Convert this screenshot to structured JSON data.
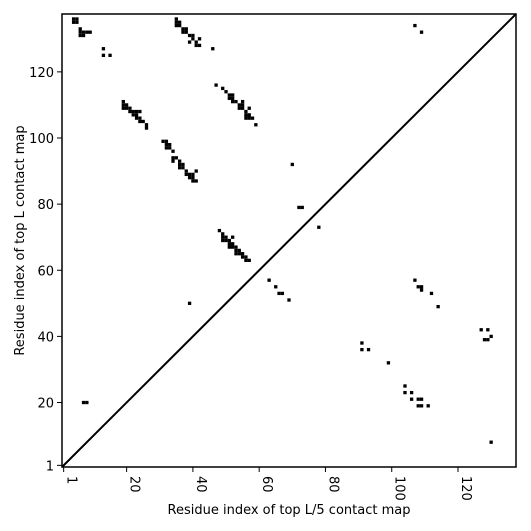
{
  "chart_data": {
    "type": "scatter",
    "xlabel": "Residue index of top L/5 contact map",
    "ylabel": "Residue index of top L contact map",
    "xlim": [
      1,
      137
    ],
    "ylim": [
      1,
      137
    ],
    "xticks": [
      1,
      20,
      40,
      60,
      80,
      100,
      120
    ],
    "yticks": [
      1,
      20,
      40,
      60,
      80,
      100,
      120
    ],
    "diagonal_line": true,
    "marker": "square",
    "marker_color": "#000000",
    "points": [
      [
        4,
        136
      ],
      [
        5,
        136
      ],
      [
        4,
        135
      ],
      [
        5,
        135
      ],
      [
        6,
        133
      ],
      [
        6,
        132
      ],
      [
        7,
        132
      ],
      [
        8,
        132
      ],
      [
        6,
        131
      ],
      [
        7,
        131
      ],
      [
        9,
        132
      ],
      [
        13,
        127
      ],
      [
        13,
        125
      ],
      [
        15,
        125
      ],
      [
        19,
        111
      ],
      [
        19,
        110
      ],
      [
        20,
        110
      ],
      [
        19,
        109
      ],
      [
        20,
        109
      ],
      [
        21,
        109
      ],
      [
        21,
        108
      ],
      [
        22,
        108
      ],
      [
        23,
        108
      ],
      [
        24,
        108
      ],
      [
        22,
        107
      ],
      [
        23,
        107
      ],
      [
        23,
        106
      ],
      [
        24,
        106
      ],
      [
        24,
        105
      ],
      [
        25,
        105
      ],
      [
        26,
        104
      ],
      [
        26,
        103
      ],
      [
        35,
        136
      ],
      [
        35,
        135
      ],
      [
        36,
        135
      ],
      [
        35,
        134
      ],
      [
        36,
        134
      ],
      [
        37,
        133
      ],
      [
        38,
        133
      ],
      [
        37,
        132
      ],
      [
        38,
        132
      ],
      [
        39,
        131
      ],
      [
        40,
        131
      ],
      [
        40,
        130
      ],
      [
        42,
        130
      ],
      [
        39,
        129
      ],
      [
        41,
        129
      ],
      [
        41,
        128
      ],
      [
        42,
        128
      ],
      [
        46,
        127
      ],
      [
        47,
        116
      ],
      [
        49,
        115
      ],
      [
        50,
        114
      ],
      [
        51,
        113
      ],
      [
        52,
        113
      ],
      [
        51,
        112
      ],
      [
        52,
        112
      ],
      [
        52,
        111
      ],
      [
        53,
        111
      ],
      [
        55,
        111
      ],
      [
        54,
        110
      ],
      [
        55,
        110
      ],
      [
        54,
        109
      ],
      [
        55,
        109
      ],
      [
        57,
        109
      ],
      [
        56,
        108
      ],
      [
        56,
        107
      ],
      [
        57,
        107
      ],
      [
        56,
        106
      ],
      [
        57,
        106
      ],
      [
        58,
        106
      ],
      [
        59,
        104
      ],
      [
        31,
        99
      ],
      [
        32,
        99
      ],
      [
        32,
        98
      ],
      [
        33,
        98
      ],
      [
        32,
        97
      ],
      [
        33,
        97
      ],
      [
        34,
        96
      ],
      [
        34,
        94
      ],
      [
        35,
        94
      ],
      [
        34,
        93
      ],
      [
        36,
        93
      ],
      [
        36,
        92
      ],
      [
        37,
        92
      ],
      [
        36,
        91
      ],
      [
        37,
        91
      ],
      [
        38,
        90
      ],
      [
        38,
        89
      ],
      [
        39,
        89
      ],
      [
        40,
        89
      ],
      [
        41,
        90
      ],
      [
        39,
        88
      ],
      [
        40,
        88
      ],
      [
        40,
        87
      ],
      [
        41,
        87
      ],
      [
        70,
        92
      ],
      [
        72,
        79
      ],
      [
        73,
        79
      ],
      [
        78,
        73
      ],
      [
        48,
        72
      ],
      [
        49,
        71
      ],
      [
        49,
        70
      ],
      [
        50,
        70
      ],
      [
        52,
        70
      ],
      [
        49,
        69
      ],
      [
        50,
        69
      ],
      [
        51,
        69
      ],
      [
        51,
        68
      ],
      [
        52,
        68
      ],
      [
        51,
        67
      ],
      [
        52,
        67
      ],
      [
        53,
        67
      ],
      [
        53,
        66
      ],
      [
        54,
        66
      ],
      [
        53,
        65
      ],
      [
        54,
        65
      ],
      [
        55,
        65
      ],
      [
        55,
        64
      ],
      [
        56,
        64
      ],
      [
        56,
        63
      ],
      [
        57,
        63
      ],
      [
        63,
        57
      ],
      [
        65,
        55
      ],
      [
        66,
        53
      ],
      [
        67,
        53
      ],
      [
        69,
        51
      ],
      [
        39,
        50
      ],
      [
        107,
        57
      ],
      [
        108,
        55
      ],
      [
        109,
        55
      ],
      [
        109,
        54
      ],
      [
        112,
        53
      ],
      [
        114,
        49
      ],
      [
        107,
        134
      ],
      [
        109,
        132
      ],
      [
        127,
        42
      ],
      [
        129,
        42
      ],
      [
        130,
        40
      ],
      [
        128,
        39
      ],
      [
        129,
        39
      ],
      [
        91,
        38
      ],
      [
        91,
        36
      ],
      [
        93,
        36
      ],
      [
        99,
        32
      ],
      [
        104,
        25
      ],
      [
        104,
        23
      ],
      [
        106,
        23
      ],
      [
        106,
        21
      ],
      [
        108,
        21
      ],
      [
        109,
        21
      ],
      [
        108,
        19
      ],
      [
        109,
        19
      ],
      [
        111,
        19
      ],
      [
        7,
        20
      ],
      [
        8,
        20
      ],
      [
        130,
        8
      ]
    ]
  }
}
